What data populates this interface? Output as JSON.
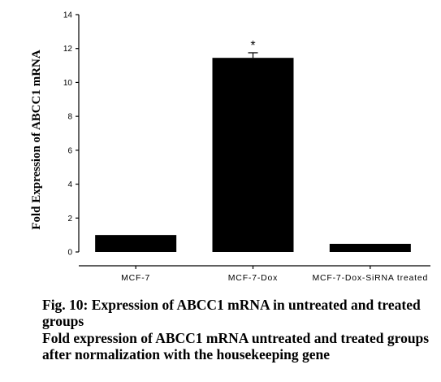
{
  "chart_data": {
    "type": "bar",
    "categories": [
      "MCF-7",
      "MCF-7-Dox",
      "MCF-7-Dox-SiRNA treated"
    ],
    "values": [
      1.0,
      11.45,
      0.0
    ],
    "error_bars": [
      0.0,
      0.3,
      0.0
    ],
    "significance_markers": [
      "",
      "*",
      ""
    ],
    "ylabel": "Fold Expression of ABCC1 mRNA",
    "xlabel": "",
    "ylim": [
      0,
      14
    ],
    "yticks": [
      0,
      2,
      4,
      6,
      8,
      10,
      12,
      14
    ],
    "grid": false,
    "bar_color": "#000000"
  },
  "caption": {
    "label": "Fig. 10:",
    "title": "Expression of ABCC1 mRNA in untreated and treated groups",
    "description": "Fold expression of ABCC1 mRNA untreated and treated groups after normalization with the housekeeping gene"
  }
}
